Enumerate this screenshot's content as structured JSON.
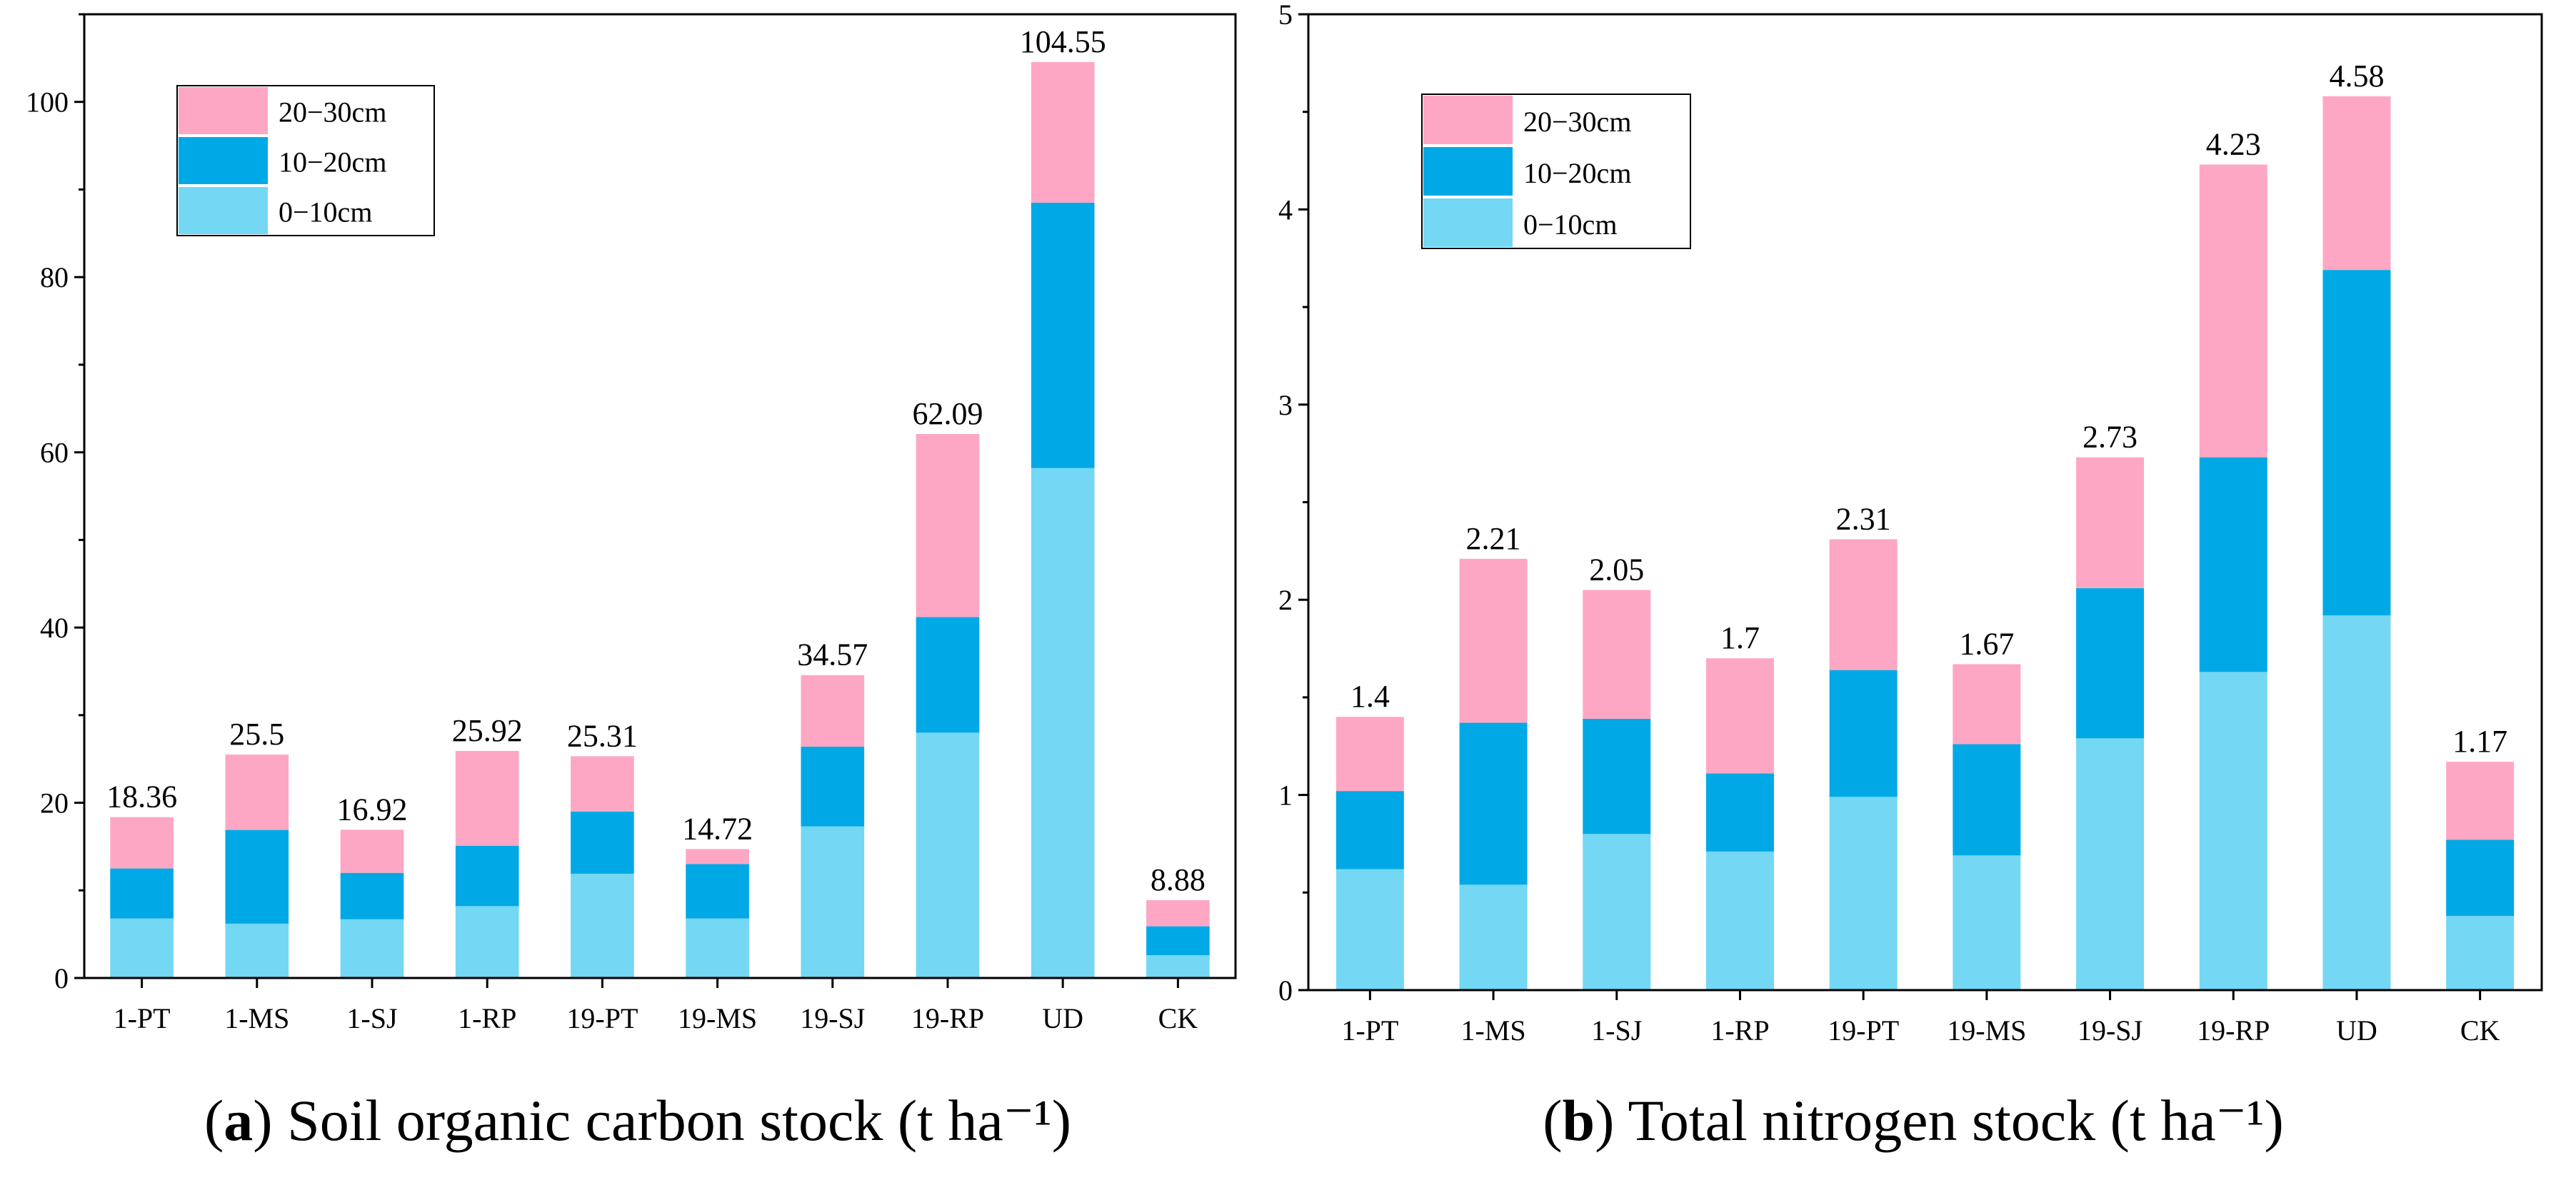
{
  "chart_data": [
    {
      "type": "bar",
      "stacked": true,
      "panel_letter": "a",
      "caption": "Soil organic carbon stock (t ha⁻¹)",
      "categories": [
        "1-PT",
        "1-MS",
        "1-SJ",
        "1-RP",
        "19-PT",
        "19-MS",
        "19-SJ",
        "19-RP",
        "UD",
        "CK"
      ],
      "series": [
        {
          "name": "0−10cm",
          "color": "#74d7f3",
          "values": [
            6.8,
            6.2,
            6.7,
            8.2,
            11.9,
            6.8,
            17.3,
            28.0,
            58.2,
            2.6
          ]
        },
        {
          "name": "10−20cm",
          "color": "#00a9e6",
          "values": [
            5.7,
            10.7,
            5.3,
            6.9,
            7.1,
            6.2,
            9.1,
            13.2,
            30.3,
            3.3
          ]
        },
        {
          "name": "20−30cm",
          "color": "#fea7c4",
          "values": [
            5.86,
            8.6,
            4.92,
            10.82,
            6.31,
            1.72,
            8.17,
            20.89,
            16.05,
            2.98
          ]
        }
      ],
      "totals": [
        "18.36",
        "25.5",
        "16.92",
        "25.92",
        "25.31",
        "14.72",
        "34.57",
        "62.09",
        "104.55",
        "8.88"
      ],
      "ylim": [
        0,
        110
      ],
      "yticks": [
        "0",
        "20",
        "40",
        "60",
        "80",
        "100"
      ],
      "legend_position": "top-left",
      "grid": false
    },
    {
      "type": "bar",
      "stacked": true,
      "panel_letter": "b",
      "caption": "Total nitrogen stock (t ha⁻¹)",
      "categories": [
        "1-PT",
        "1-MS",
        "1-SJ",
        "1-RP",
        "19-PT",
        "19-MS",
        "19-SJ",
        "19-RP",
        "UD",
        "CK"
      ],
      "series": [
        {
          "name": "0−10cm",
          "color": "#74d7f3",
          "values": [
            0.62,
            0.54,
            0.8,
            0.71,
            0.99,
            0.69,
            1.29,
            1.63,
            1.92,
            0.38
          ]
        },
        {
          "name": "10−20cm",
          "color": "#00a9e6",
          "values": [
            0.4,
            0.83,
            0.59,
            0.4,
            0.65,
            0.57,
            0.77,
            1.1,
            1.77,
            0.39
          ]
        },
        {
          "name": "20−30cm",
          "color": "#fea7c4",
          "values": [
            0.38,
            0.84,
            0.66,
            0.59,
            0.67,
            0.41,
            0.67,
            1.5,
            0.89,
            0.4
          ]
        }
      ],
      "totals": [
        "1.4",
        "2.21",
        "2.05",
        "1.7",
        "2.31",
        "1.67",
        "2.73",
        "4.23",
        "4.58",
        "1.17"
      ],
      "ylim": [
        0,
        5
      ],
      "yticks": [
        "0",
        "1",
        "2",
        "3",
        "4",
        "5"
      ],
      "legend_position": "top-left",
      "grid": false
    }
  ]
}
